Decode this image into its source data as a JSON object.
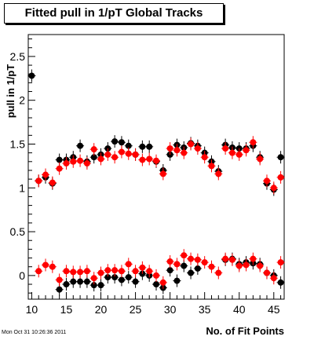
{
  "chart_data": {
    "type": "scatter",
    "title": "Fitted pull in 1/pT  Global Tracks",
    "xlabel": "No. of Fit Points",
    "ylabel": "pull in 1/pT",
    "xlim": [
      9.5,
      46.5
    ],
    "ylim": [
      -0.27,
      2.75
    ],
    "xticks": [
      10,
      15,
      20,
      25,
      30,
      35,
      40,
      45
    ],
    "yticks": [
      0,
      0.5,
      1,
      1.5,
      2,
      2.5
    ],
    "grid": false,
    "legend": "none",
    "series": [
      {
        "color": "#000000",
        "mean_x": [
          10,
          11,
          12,
          13,
          14,
          15,
          16,
          17,
          18,
          19,
          20,
          21,
          22,
          23,
          24,
          25,
          26,
          27,
          28,
          29,
          30,
          31,
          32,
          33,
          34,
          35,
          36,
          37,
          38,
          39,
          40,
          41,
          42,
          43,
          44,
          45,
          46
        ],
        "mean_y": [
          2.28,
          1.08,
          1.12,
          1.05,
          1.32,
          1.32,
          1.35,
          1.48,
          1.3,
          1.35,
          1.38,
          1.45,
          1.53,
          1.52,
          1.48,
          1.38,
          1.47,
          1.47,
          1.3,
          1.2,
          1.38,
          1.49,
          1.46,
          1.51,
          1.48,
          1.4,
          1.3,
          1.19,
          1.49,
          1.46,
          1.45,
          1.45,
          1.48,
          1.35,
          1.05,
          0.98,
          1.35
        ],
        "rms_x": [
          10,
          11,
          12,
          13,
          14,
          15,
          16,
          17,
          18,
          19,
          20,
          21,
          22,
          23,
          24,
          25,
          26,
          27,
          28,
          29,
          30,
          31,
          32,
          33,
          34,
          35,
          36,
          37,
          38,
          39,
          40,
          41,
          42,
          43,
          44,
          45,
          46
        ],
        "rms_y": [
          null,
          null,
          null,
          null,
          -0.16,
          -0.1,
          -0.07,
          -0.07,
          -0.07,
          -0.11,
          -0.11,
          -0.02,
          -0.02,
          -0.05,
          -0.02,
          -0.07,
          0.02,
          0.0,
          -0.1,
          -0.14,
          0.06,
          -0.06,
          0.11,
          0.03,
          0.08,
          null,
          null,
          null,
          0.18,
          0.19,
          0.13,
          0.15,
          0.14,
          0.13,
          0.03,
          0.0,
          -0.08
        ]
      },
      {
        "color": "#ff0000",
        "mean_x": [
          10,
          11,
          12,
          13,
          14,
          15,
          16,
          17,
          18,
          19,
          20,
          21,
          22,
          23,
          24,
          25,
          26,
          27,
          28,
          29,
          30,
          31,
          32,
          33,
          34,
          35,
          36,
          37,
          38,
          39,
          40,
          41,
          42,
          43,
          44,
          45,
          46
        ],
        "mean_y": [
          null,
          1.08,
          1.15,
          1.06,
          1.22,
          1.28,
          1.3,
          1.31,
          1.28,
          1.44,
          1.33,
          1.38,
          1.35,
          1.41,
          1.39,
          1.38,
          1.32,
          1.33,
          1.31,
          1.16,
          1.45,
          1.43,
          1.4,
          1.5,
          1.45,
          1.35,
          1.25,
          1.16,
          1.45,
          1.4,
          1.38,
          1.43,
          1.52,
          1.33,
          1.08,
          1.0,
          1.12
        ],
        "rms_x": [
          10,
          11,
          12,
          13,
          14,
          15,
          16,
          17,
          18,
          19,
          20,
          21,
          22,
          23,
          24,
          25,
          26,
          27,
          28,
          29,
          30,
          31,
          32,
          33,
          34,
          35,
          36,
          37,
          38,
          39,
          40,
          41,
          42,
          43,
          44,
          45,
          46
        ],
        "rms_y": [
          null,
          0.05,
          0.12,
          0.1,
          -0.05,
          0.05,
          0.04,
          0.04,
          0.05,
          -0.03,
          0.03,
          0.06,
          0.06,
          0.05,
          0.13,
          0.05,
          0.09,
          0.05,
          0.0,
          -0.08,
          0.16,
          0.13,
          0.23,
          0.19,
          0.18,
          0.15,
          0.1,
          0.03,
          0.19,
          0.18,
          0.11,
          0.12,
          0.19,
          0.11,
          0.03,
          -0.03,
          0.15
        ]
      }
    ]
  },
  "footer": {
    "timestamp": "Mon Oct 31 10:26:36 2011"
  }
}
